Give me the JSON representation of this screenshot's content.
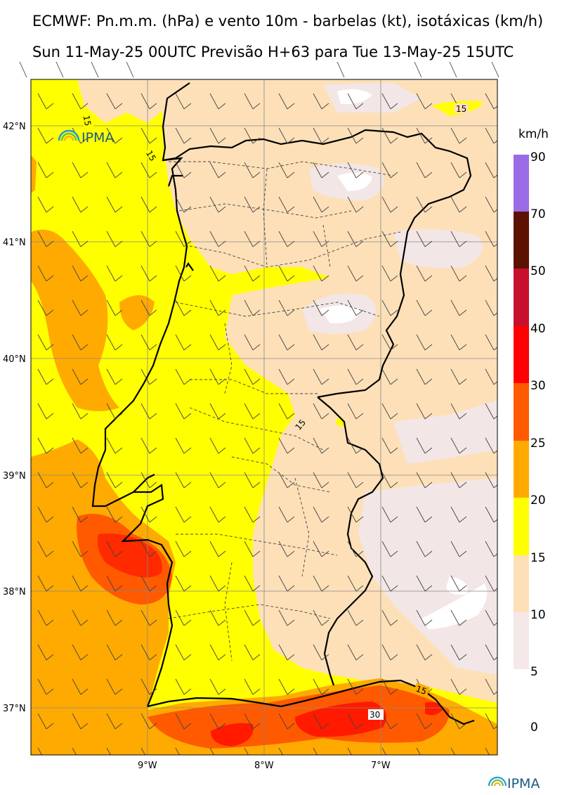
{
  "title_line1": "ECMWF: Pn.m.m. (hPa) e vento 10m - barbelas (kt), isotáxicas (km/h)",
  "title_line2": "Sun 11-May-25 00UTC Previsão H+63 para Tue 13-May-25 15UTC",
  "logo_text": "IPMA",
  "lat_ticks": [
    "42°N",
    "41°N",
    "40°N",
    "39°N",
    "38°N",
    "37°N"
  ],
  "lon_ticks": [
    "9°W",
    "8°W",
    "7°W"
  ],
  "colorbar": {
    "unit": "km/h",
    "levels": [
      "90",
      "70",
      "50",
      "40",
      "30",
      "25",
      "20",
      "15",
      "10",
      "5",
      "0"
    ],
    "colors": [
      "#9b6be6",
      "#5c1200",
      "#c8102e",
      "#ff0000",
      "#ff5a00",
      "#ffaa00",
      "#ffff00",
      "#fde0b8",
      "#f5e8e8",
      "#ffffff"
    ]
  },
  "contour_labels": [
    "15",
    "15",
    "15",
    "15",
    "15",
    "30"
  ],
  "field_colors": {
    "white": "#ffffff",
    "lightpink": "#f3e6e6",
    "peach": "#fde0b8",
    "yellow": "#ffff00",
    "orange": "#ffaa00",
    "darkorange": "#ff5a00",
    "red": "#ff0000"
  }
}
